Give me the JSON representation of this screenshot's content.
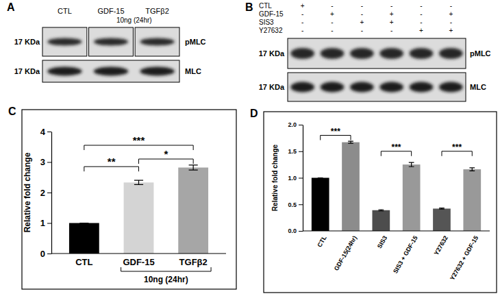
{
  "chart_data": [
    {
      "type": "bar",
      "panel_label": "C",
      "categories": [
        "CTL",
        "GDF-15",
        "TGFβ2"
      ],
      "values": [
        1,
        2.33,
        2.82
      ],
      "errors": [
        0,
        0.07,
        0.08
      ],
      "colors": [
        "#000000",
        "#d4d4d4",
        "#a6a6a6"
      ],
      "y_label": "Relative fold change",
      "ylim": [
        0,
        4
      ],
      "yticks": [
        0,
        1,
        2,
        3,
        4
      ],
      "grid": false,
      "annotations": [
        {
          "text": "***",
          "from": "CTL",
          "to": "TGFβ2",
          "y": 3.55
        },
        {
          "text": "**",
          "from": "CTL",
          "to": "GDF-15",
          "y": 2.85
        },
        {
          "text": "*",
          "from": "GDF-15",
          "to": "TGFβ2",
          "y": 3.1
        }
      ],
      "group_label": {
        "text": "10ng (24hr)",
        "categories": [
          "GDF-15",
          "TGFβ2"
        ]
      }
    },
    {
      "type": "bar",
      "panel_label": "D",
      "categories": [
        "CTL",
        "GDF-15(24hr)",
        "SIS3",
        "SIS3 + GDF-15",
        "Y27632",
        "Y27632 + GDF-15"
      ],
      "values": [
        1,
        1.67,
        0.39,
        1.25,
        0.42,
        1.16
      ],
      "errors": [
        0,
        0.02,
        0.01,
        0.04,
        0.01,
        0.03
      ],
      "colors": [
        "#000000",
        "#8c8c8c",
        "#4d4d4d",
        "#999999",
        "#555555",
        "#999999"
      ],
      "y_label": "Relative fold change",
      "ylim": [
        0,
        2
      ],
      "yticks": [
        {
          "value": 0,
          "label": "0.0"
        },
        0.5,
        {
          "value": 1,
          "label": "1.0"
        },
        1.5,
        {
          "value": 2,
          "label": "2.0"
        }
      ],
      "grid": false,
      "annotations": [
        {
          "text": "***",
          "from": "CTL",
          "to": "GDF-15(24hr)",
          "y": 1.8
        },
        {
          "text": "***",
          "from": "SIS3",
          "to": "SIS3 + GDF-15",
          "y": 1.5
        },
        {
          "text": "***",
          "from": "Y27632",
          "to": "Y27632 + GDF-15",
          "y": 1.5
        }
      ]
    }
  ],
  "blots": [
    {
      "panel_label": "A",
      "columns": [
        "CTL",
        "GDF-15",
        "TGFβ2"
      ],
      "treatment": "10ng (24hr)",
      "bands": [
        {
          "name": "pMLC",
          "size": "17 KDa"
        },
        {
          "name": "MLC",
          "size": "17 KDa"
        }
      ]
    },
    {
      "panel_label": "B",
      "rows": [
        {
          "name": "CTL",
          "signs": [
            "+",
            "-",
            "-",
            "-",
            "-",
            "-"
          ]
        },
        {
          "name": "GDF-15",
          "signs": [
            "-",
            "+",
            "-",
            "+",
            "-",
            "+"
          ]
        },
        {
          "name": "SIS3",
          "signs": [
            "-",
            "-",
            "+",
            "+",
            "-",
            "-"
          ]
        },
        {
          "name": "Y27632",
          "signs": [
            "-",
            "-",
            "-",
            "-",
            "+",
            "+"
          ]
        }
      ],
      "bands": [
        {
          "name": "pMLC",
          "size": "17 KDa"
        },
        {
          "name": "MLC",
          "size": "17 KDa"
        }
      ]
    }
  ]
}
